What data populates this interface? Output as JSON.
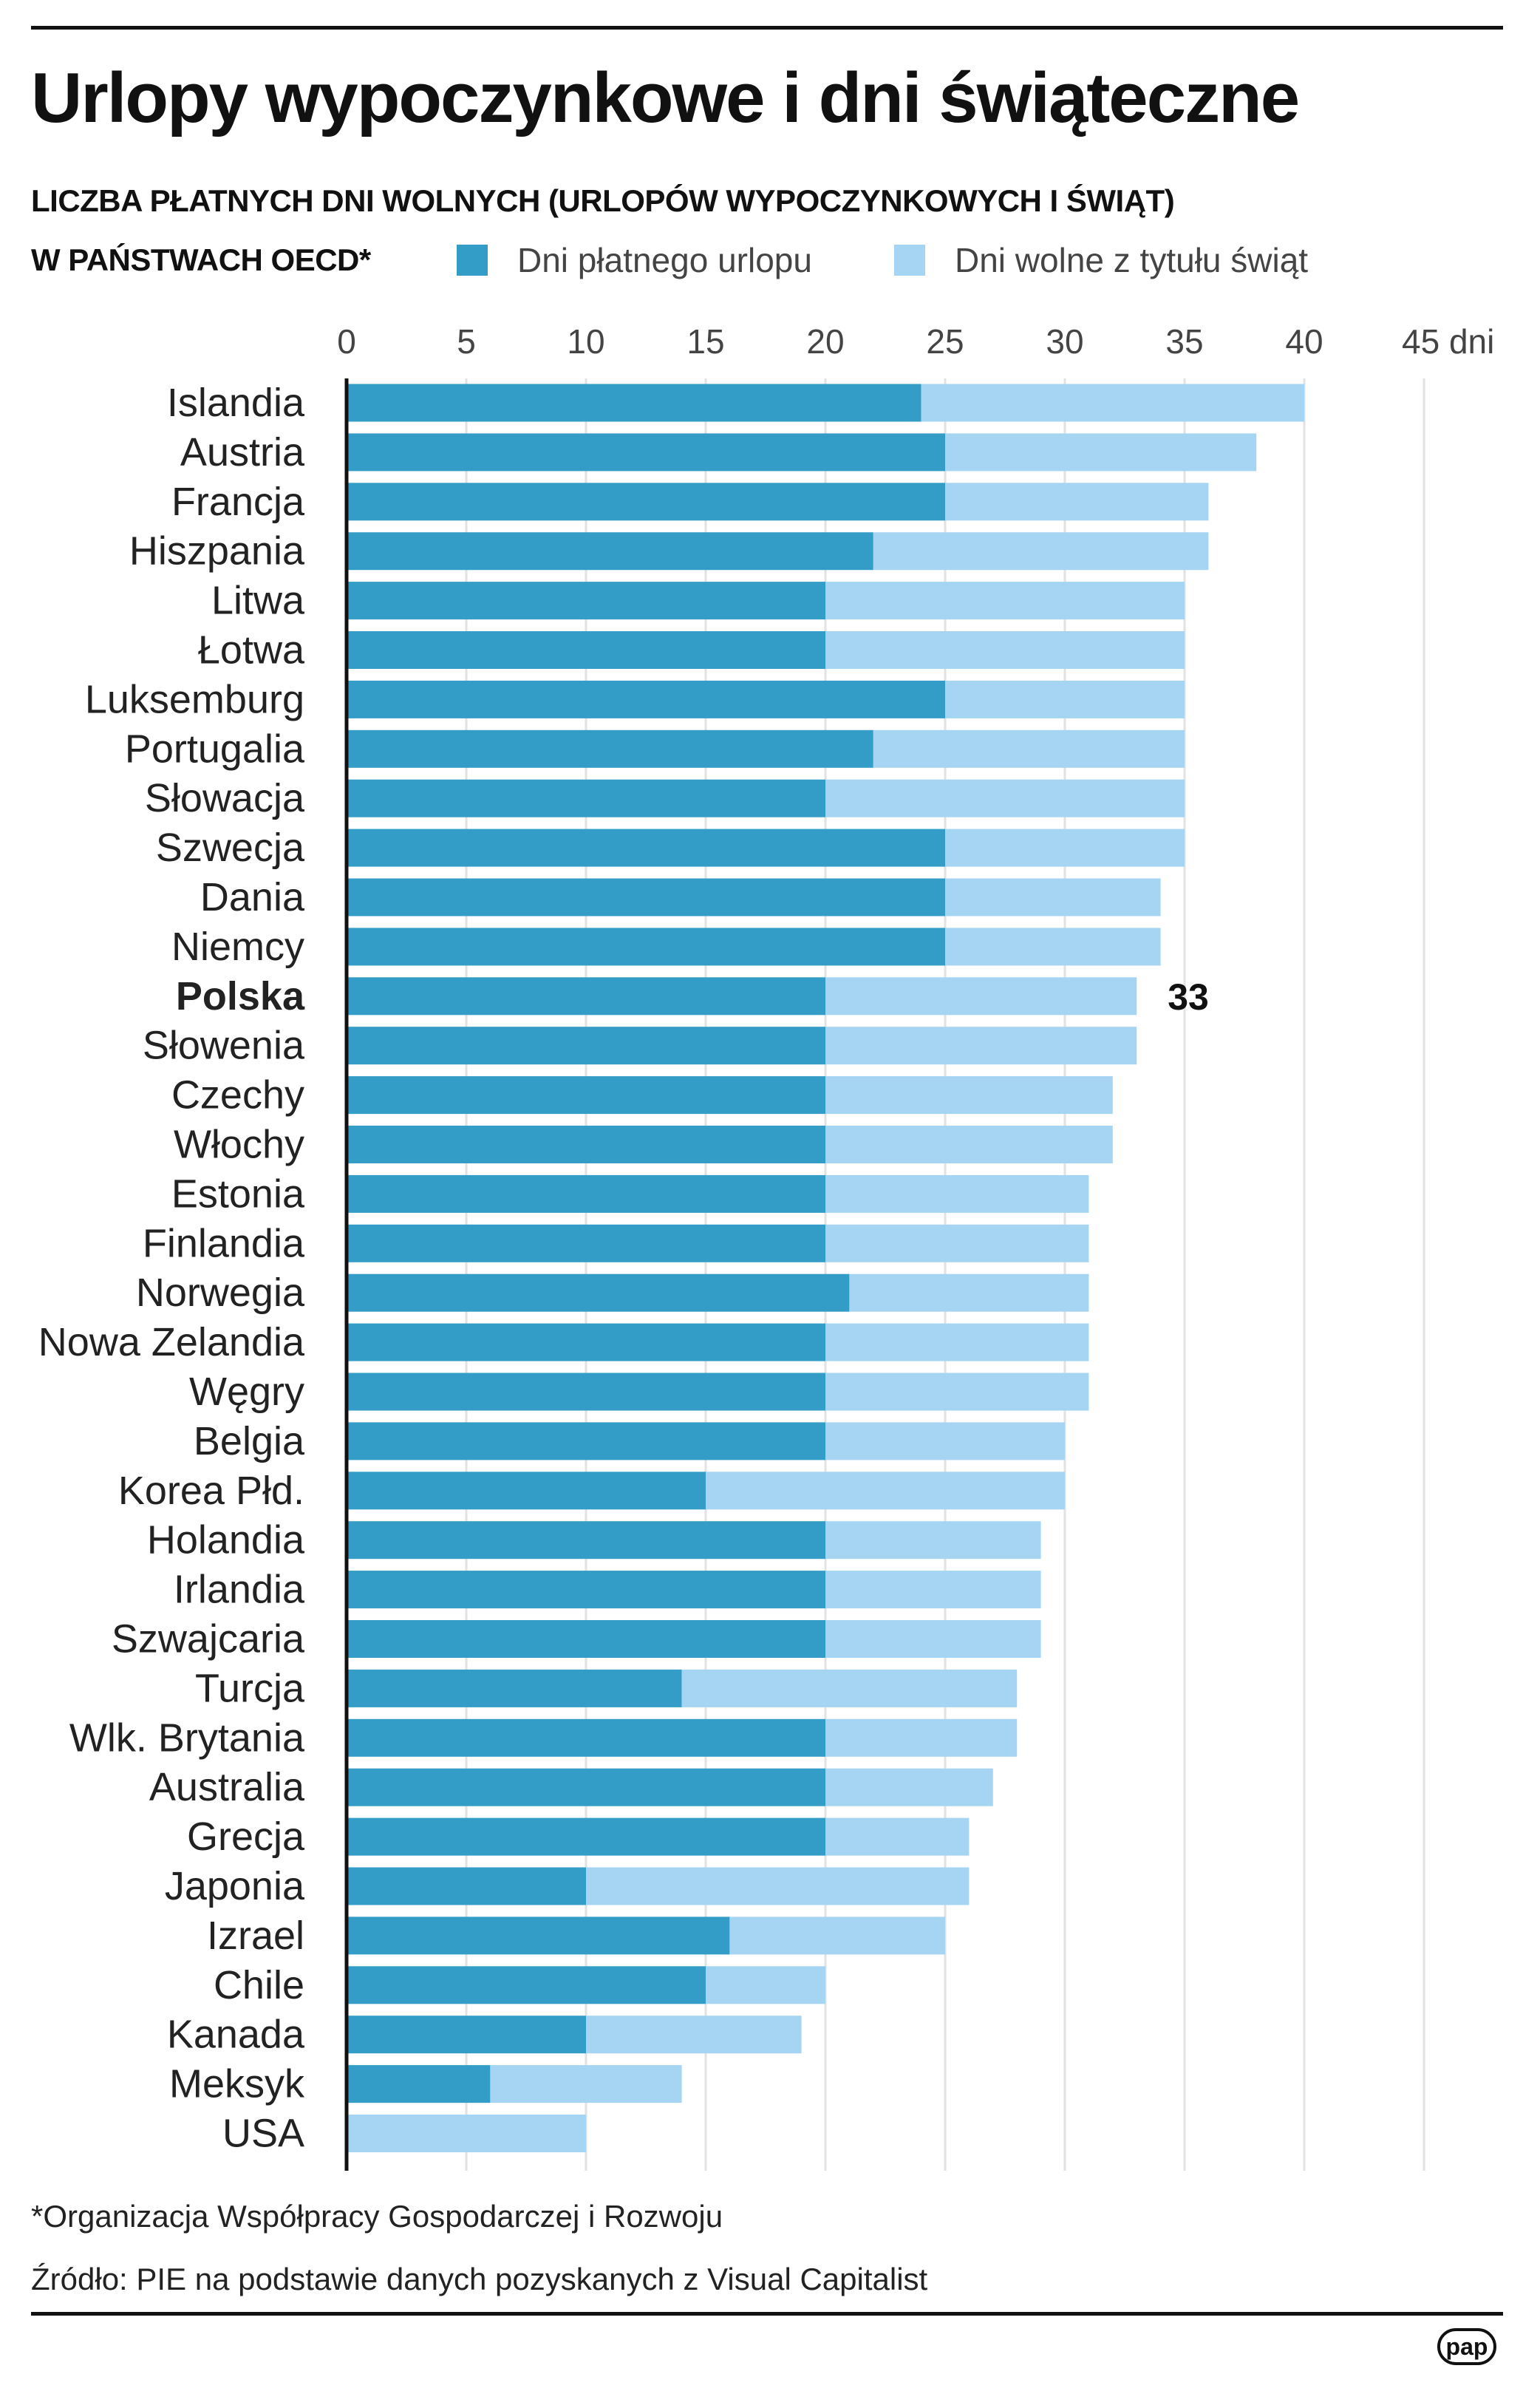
{
  "title": "Urlopy wypoczynkowe i dni świąteczne",
  "subtitle_line1": "LICZBA PŁATNYCH DNI WOLNYCH (URLOPÓW WYPOCZYNKOWYCH I ŚWIĄT)",
  "subtitle_line2": "W PAŃSTWACH OECD*",
  "footnote": "*Organizacja Współpracy Gospodarczej i Rozwoju",
  "source": "Źródło: PIE na podstawie danych pozyskanych z Visual Capitalist",
  "logo": "pap",
  "chart_data": {
    "type": "bar",
    "orientation": "horizontal",
    "stacked": true,
    "title": "Urlopy wypoczynkowe i dni świąteczne",
    "xlim": [
      0,
      45
    ],
    "xticks": [
      0,
      5,
      10,
      15,
      20,
      25,
      30,
      35,
      40,
      45
    ],
    "xtick_labels": [
      "0",
      "5",
      "10",
      "15",
      "20",
      "25",
      "30",
      "35",
      "40",
      "45 dni"
    ],
    "grid": true,
    "legend_placement": "top",
    "highlight": {
      "category": "Polska",
      "label": "33"
    },
    "categories": [
      "Islandia",
      "Austria",
      "Francja",
      "Hiszpania",
      "Litwa",
      "Łotwa",
      "Luksemburg",
      "Portugalia",
      "Słowacja",
      "Szwecja",
      "Dania",
      "Niemcy",
      "Polska",
      "Słowenia",
      "Czechy",
      "Włochy",
      "Estonia",
      "Finlandia",
      "Norwegia",
      "Nowa Zelandia",
      "Węgry",
      "Belgia",
      "Korea Płd.",
      "Holandia",
      "Irlandia",
      "Szwajcaria",
      "Turcja",
      "Wlk. Brytania",
      "Australia",
      "Grecja",
      "Japonia",
      "Izrael",
      "Chile",
      "Kanada",
      "Meksyk",
      "USA"
    ],
    "series": [
      {
        "name": "Dni płatnego urlopu",
        "color": "#339dc7",
        "values": [
          24,
          25,
          25,
          22,
          20,
          20,
          25,
          22,
          20,
          25,
          25,
          25,
          20,
          20,
          20,
          20,
          20,
          20,
          21,
          20,
          20,
          20,
          15,
          20,
          20,
          20,
          14,
          20,
          20,
          20,
          10,
          16,
          15,
          10,
          6,
          0
        ]
      },
      {
        "name": "Dni wolne z tytułu świąt",
        "color": "#a6d5f4",
        "values": [
          16,
          13,
          11,
          14,
          15,
          15,
          10,
          13,
          15,
          10,
          9,
          9,
          13,
          13,
          12,
          12,
          11,
          11,
          10,
          11,
          11,
          10,
          15,
          9,
          9,
          9,
          14,
          8,
          7,
          6,
          16,
          9,
          5,
          9,
          8,
          10
        ]
      }
    ]
  }
}
